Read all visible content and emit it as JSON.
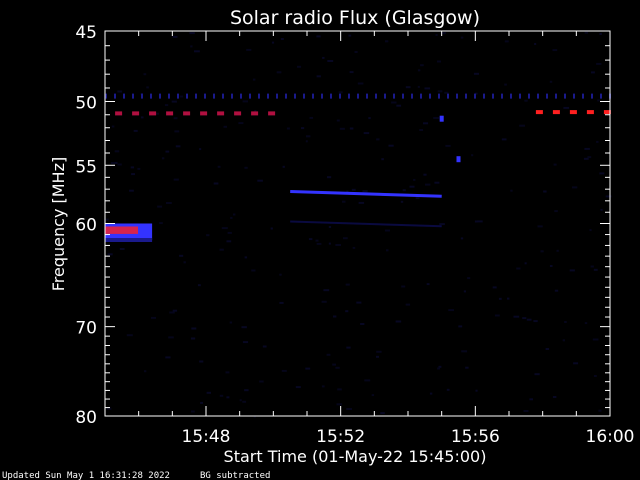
{
  "chart_data": {
    "type": "heatmap",
    "title": "Solar radio Flux (Glasgow)",
    "xlabel": "Start Time (01-May-22 15:45:00)",
    "ylabel": "Frequency [MHz]",
    "x_start": "15:45",
    "x_end": "16:00",
    "xlim_minutes": [
      0,
      15
    ],
    "ylim_mhz": [
      45,
      80
    ],
    "y_scale": "log",
    "x_ticks": [
      {
        "label": "15:48",
        "minute": 3
      },
      {
        "label": "15:52",
        "minute": 7
      },
      {
        "label": "15:56",
        "minute": 11
      },
      {
        "label": "16:00",
        "minute": 15
      }
    ],
    "y_ticks": [
      {
        "label": "45",
        "mhz": 45
      },
      {
        "label": "50",
        "mhz": 50
      },
      {
        "label": "55",
        "mhz": 55
      },
      {
        "label": "60",
        "mhz": 60
      },
      {
        "label": "70",
        "mhz": 70
      },
      {
        "label": "80",
        "mhz": 80
      }
    ],
    "features": [
      {
        "kind": "dashed-line",
        "mhz": 49.6,
        "t_start": 0.0,
        "t_end": 15.0,
        "intensity": 0.35
      },
      {
        "kind": "dashed-line",
        "mhz": 50.9,
        "t_start": 0.3,
        "t_end": 5.3,
        "intensity": 0.75
      },
      {
        "kind": "dashed-line",
        "mhz": 50.8,
        "t_start": 12.8,
        "t_end": 15.0,
        "intensity": 1.0
      },
      {
        "kind": "band",
        "mhz_low": 60.0,
        "mhz_high": 61.5,
        "t_start": 0.0,
        "t_end": 1.4,
        "intensity": 0.9
      },
      {
        "kind": "drift-line",
        "mhz_start": 57.2,
        "mhz_end": 57.6,
        "t_start": 5.5,
        "t_end": 10.0,
        "intensity": 0.4
      },
      {
        "kind": "spot",
        "mhz": 51.3,
        "t": 10.0,
        "intensity": 0.45
      },
      {
        "kind": "spot",
        "mhz": 54.5,
        "t": 10.5,
        "intensity": 0.45
      }
    ]
  },
  "footer": {
    "updated": "Updated Sun May  1 16:31:28 2022",
    "note": "BG subtracted"
  },
  "colors": {
    "background": "#000000",
    "axis": "#ffffff",
    "low": "#1a1a8c",
    "mid": "#3333ff",
    "high": "#ff2020"
  }
}
